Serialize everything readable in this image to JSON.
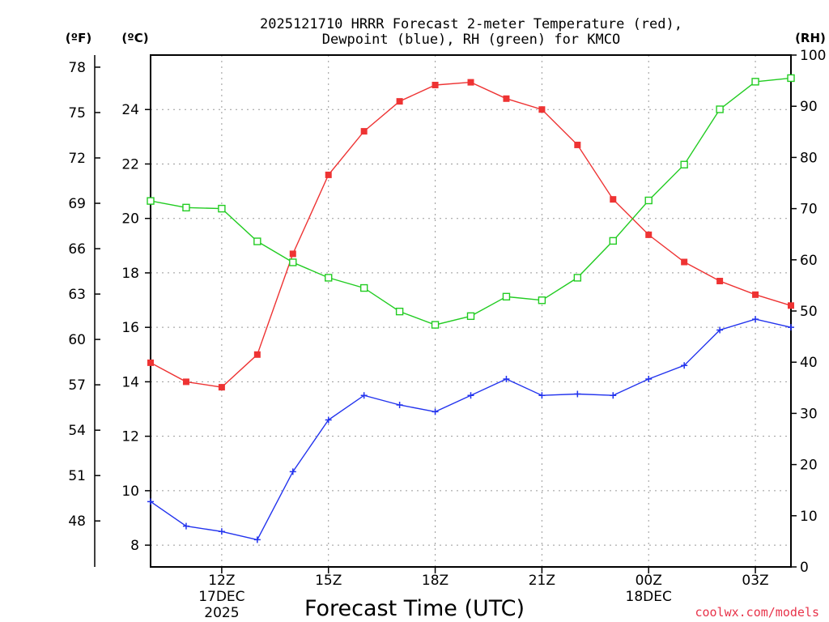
{
  "chart_data": {
    "type": "line",
    "title_line1": "2025121710 HRRR Forecast 2-meter Temperature (red),",
    "title_line2": "Dewpoint (blue), RH (green) for KMCO",
    "left_unit_f": "(ºF)",
    "left_unit_c": "(ºC)",
    "right_unit": "(RH)",
    "xlabel": "Forecast Time (UTC)",
    "credit": "coolwx.com/models",
    "x_hours": [
      10,
      11,
      12,
      13,
      14,
      15,
      16,
      17,
      18,
      19,
      20,
      21,
      22,
      23,
      24,
      25,
      26,
      27,
      28
    ],
    "x_range": [
      10,
      28
    ],
    "x_ticks": [
      {
        "hour": 12,
        "label": "12Z",
        "sub1": "17DEC",
        "sub2": "2025"
      },
      {
        "hour": 15,
        "label": "15Z",
        "sub1": "",
        "sub2": ""
      },
      {
        "hour": 18,
        "label": "18Z",
        "sub1": "",
        "sub2": ""
      },
      {
        "hour": 21,
        "label": "21Z",
        "sub1": "",
        "sub2": ""
      },
      {
        "hour": 24,
        "label": "00Z",
        "sub1": "18DEC",
        "sub2": ""
      },
      {
        "hour": 27,
        "label": "03Z",
        "sub1": "",
        "sub2": ""
      }
    ],
    "celsius_range": [
      7.2,
      26.0
    ],
    "celsius_ticks": [
      "8",
      "10",
      "12",
      "14",
      "16",
      "18",
      "20",
      "22",
      "24"
    ],
    "fahrenheit_ticks": [
      "48",
      "51",
      "54",
      "57",
      "60",
      "63",
      "66",
      "69",
      "72",
      "75",
      "78"
    ],
    "rh_range": [
      0,
      100
    ],
    "rh_ticks": [
      "0",
      "10",
      "20",
      "30",
      "40",
      "50",
      "60",
      "70",
      "80",
      "90",
      "100"
    ],
    "series": [
      {
        "name": "2-meter Temperature",
        "color": "#ee3333",
        "marker": "filled-square",
        "axis": "celsius",
        "values": [
          14.7,
          14.0,
          13.8,
          15.0,
          18.7,
          21.6,
          23.2,
          24.3,
          24.9,
          25.0,
          24.4,
          24.0,
          22.7,
          20.7,
          19.4,
          18.4,
          17.7,
          17.2,
          16.8
        ]
      },
      {
        "name": "Dewpoint",
        "color": "#2233ee",
        "marker": "plus",
        "axis": "celsius",
        "values": [
          9.6,
          8.7,
          8.5,
          8.2,
          10.7,
          12.6,
          13.5,
          13.15,
          12.9,
          13.5,
          14.1,
          13.5,
          13.55,
          13.5,
          14.1,
          14.6,
          15.9,
          16.3,
          16.0
        ]
      },
      {
        "name": "Relative Humidity",
        "color": "#22cc22",
        "marker": "open-square",
        "axis": "rh",
        "values": [
          71.5,
          70.2,
          70.0,
          63.6,
          59.5,
          56.5,
          54.5,
          49.9,
          47.3,
          49.0,
          52.8,
          52.1,
          56.5,
          63.7,
          71.6,
          78.6,
          89.4,
          94.8,
          95.5
        ]
      }
    ]
  }
}
